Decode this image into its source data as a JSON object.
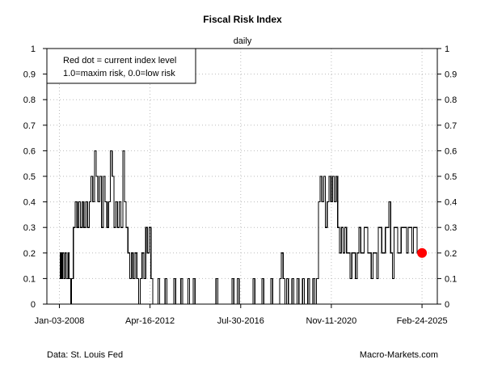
{
  "chart_data": {
    "type": "line",
    "title": "Fiscal Risk Index",
    "subtitle": "daily",
    "ylim": [
      0,
      1
    ],
    "y_ticks": [
      0,
      0.1,
      0.2,
      0.3,
      0.4,
      0.5,
      0.6,
      0.7,
      0.8,
      0.9,
      1
    ],
    "y_tick_labels": [
      "0",
      "0.1",
      "0.2",
      "0.3",
      "0.4",
      "0.5",
      "0.6",
      "0.7",
      "0.8",
      "0.9",
      "1"
    ],
    "x_range": [
      "2007-06-01",
      "2025-11-15"
    ],
    "x_ticks": [
      "2008-01-03",
      "2012-04-16",
      "2016-07-30",
      "2020-11-11",
      "2025-02-24"
    ],
    "x_tick_labels": [
      "Jan-03-2008",
      "Apr-16-2012",
      "Jul-30-2016",
      "Nov-11-2020",
      "Feb-24-2025"
    ],
    "grid": true,
    "legend_position": "top-left",
    "legend_lines": [
      "Red dot = current index level",
      "1.0=maxim risk, 0.0=low risk"
    ],
    "current_point": {
      "x": "2025-02-24",
      "y": 0.2
    },
    "point_color": "#ff0000",
    "line_color": "#000000",
    "grid_color": "#bbbbbb",
    "series": [
      {
        "values": [
          [
            "2008-01-03",
            0.1
          ],
          [
            "2008-01-20",
            0.2
          ],
          [
            "2008-02-10",
            0.1
          ],
          [
            "2008-03-01",
            0.2
          ],
          [
            "2008-03-20",
            0.1
          ],
          [
            "2008-04-10",
            0.2
          ],
          [
            "2008-05-01",
            0.1
          ],
          [
            "2008-06-01",
            0.2
          ],
          [
            "2008-06-20",
            0.1
          ],
          [
            "2008-07-15",
            0.0
          ],
          [
            "2008-08-01",
            0.1
          ],
          [
            "2008-09-01",
            0.3
          ],
          [
            "2008-10-01",
            0.4
          ],
          [
            "2008-11-01",
            0.3
          ],
          [
            "2008-12-01",
            0.4
          ],
          [
            "2009-01-01",
            0.3
          ],
          [
            "2009-02-01",
            0.4
          ],
          [
            "2009-03-01",
            0.3
          ],
          [
            "2009-04-01",
            0.4
          ],
          [
            "2009-05-01",
            0.3
          ],
          [
            "2009-06-01",
            0.4
          ],
          [
            "2009-07-01",
            0.5
          ],
          [
            "2009-08-01",
            0.4
          ],
          [
            "2009-09-01",
            0.6
          ],
          [
            "2009-10-01",
            0.5
          ],
          [
            "2009-11-01",
            0.4
          ],
          [
            "2009-12-01",
            0.5
          ],
          [
            "2010-01-01",
            0.3
          ],
          [
            "2010-02-01",
            0.5
          ],
          [
            "2010-03-01",
            0.4
          ],
          [
            "2010-04-01",
            0.3
          ],
          [
            "2010-05-01",
            0.4
          ],
          [
            "2010-06-01",
            0.6
          ],
          [
            "2010-07-01",
            0.5
          ],
          [
            "2010-08-01",
            0.3
          ],
          [
            "2010-09-01",
            0.4
          ],
          [
            "2010-10-01",
            0.3
          ],
          [
            "2010-11-01",
            0.4
          ],
          [
            "2010-12-01",
            0.3
          ],
          [
            "2011-01-01",
            0.6
          ],
          [
            "2011-02-01",
            0.4
          ],
          [
            "2011-03-01",
            0.3
          ],
          [
            "2011-04-01",
            0.2
          ],
          [
            "2011-05-01",
            0.1
          ],
          [
            "2011-06-01",
            0.2
          ],
          [
            "2011-07-01",
            0.1
          ],
          [
            "2011-08-01",
            0.2
          ],
          [
            "2011-09-01",
            0.1
          ],
          [
            "2011-10-01",
            0.0
          ],
          [
            "2011-11-01",
            0.1
          ],
          [
            "2011-12-01",
            0.2
          ],
          [
            "2012-01-01",
            0.1
          ],
          [
            "2012-02-01",
            0.3
          ],
          [
            "2012-03-01",
            0.2
          ],
          [
            "2012-04-01",
            0.3
          ],
          [
            "2012-05-01",
            0.1
          ],
          [
            "2012-06-01",
            0.0
          ],
          [
            "2012-09-01",
            0.1
          ],
          [
            "2012-10-01",
            0.0
          ],
          [
            "2013-01-01",
            0.1
          ],
          [
            "2013-02-01",
            0.0
          ],
          [
            "2013-06-01",
            0.1
          ],
          [
            "2013-07-01",
            0.0
          ],
          [
            "2013-10-01",
            0.1
          ],
          [
            "2013-11-01",
            0.0
          ],
          [
            "2014-02-01",
            0.1
          ],
          [
            "2014-03-01",
            0.0
          ],
          [
            "2014-05-01",
            0.1
          ],
          [
            "2014-06-01",
            0.0
          ],
          [
            "2015-06-01",
            0.1
          ],
          [
            "2015-07-01",
            0.0
          ],
          [
            "2016-03-01",
            0.1
          ],
          [
            "2016-04-01",
            0.0
          ],
          [
            "2016-06-01",
            0.1
          ],
          [
            "2016-07-01",
            0.0
          ],
          [
            "2017-03-01",
            0.1
          ],
          [
            "2017-04-01",
            0.0
          ],
          [
            "2017-08-01",
            0.1
          ],
          [
            "2017-09-01",
            0.0
          ],
          [
            "2018-01-01",
            0.1
          ],
          [
            "2018-02-01",
            0.0
          ],
          [
            "2018-06-01",
            0.1
          ],
          [
            "2018-07-01",
            0.2
          ],
          [
            "2018-08-01",
            0.1
          ],
          [
            "2018-09-01",
            0.0
          ],
          [
            "2018-10-01",
            0.1
          ],
          [
            "2018-11-01",
            0.0
          ],
          [
            "2019-01-01",
            0.1
          ],
          [
            "2019-02-01",
            0.0
          ],
          [
            "2019-04-01",
            0.1
          ],
          [
            "2019-05-01",
            0.0
          ],
          [
            "2019-07-01",
            0.1
          ],
          [
            "2019-08-01",
            0.0
          ],
          [
            "2019-10-01",
            0.1
          ],
          [
            "2019-11-01",
            0.0
          ],
          [
            "2020-01-01",
            0.1
          ],
          [
            "2020-02-01",
            0.0
          ],
          [
            "2020-03-01",
            0.1
          ],
          [
            "2020-04-01",
            0.4
          ],
          [
            "2020-05-01",
            0.5
          ],
          [
            "2020-06-01",
            0.4
          ],
          [
            "2020-07-01",
            0.5
          ],
          [
            "2020-08-01",
            0.3
          ],
          [
            "2020-09-01",
            0.4
          ],
          [
            "2020-10-01",
            0.5
          ],
          [
            "2020-11-01",
            0.4
          ],
          [
            "2020-12-01",
            0.5
          ],
          [
            "2021-01-01",
            0.4
          ],
          [
            "2021-02-01",
            0.5
          ],
          [
            "2021-03-01",
            0.3
          ],
          [
            "2021-04-01",
            0.2
          ],
          [
            "2021-05-01",
            0.3
          ],
          [
            "2021-06-01",
            0.2
          ],
          [
            "2021-07-01",
            0.3
          ],
          [
            "2021-08-01",
            0.2
          ],
          [
            "2021-10-01",
            0.1
          ],
          [
            "2021-11-01",
            0.2
          ],
          [
            "2022-01-01",
            0.1
          ],
          [
            "2022-02-01",
            0.2
          ],
          [
            "2022-03-01",
            0.3
          ],
          [
            "2022-04-01",
            0.2
          ],
          [
            "2022-06-01",
            0.3
          ],
          [
            "2022-08-01",
            0.2
          ],
          [
            "2022-10-01",
            0.1
          ],
          [
            "2022-11-01",
            0.2
          ],
          [
            "2023-01-01",
            0.1
          ],
          [
            "2023-02-01",
            0.3
          ],
          [
            "2023-04-01",
            0.2
          ],
          [
            "2023-06-01",
            0.3
          ],
          [
            "2023-08-01",
            0.4
          ],
          [
            "2023-09-01",
            0.2
          ],
          [
            "2023-10-01",
            0.1
          ],
          [
            "2023-11-01",
            0.3
          ],
          [
            "2024-01-01",
            0.2
          ],
          [
            "2024-03-01",
            0.3
          ],
          [
            "2024-06-01",
            0.2
          ],
          [
            "2024-07-01",
            0.3
          ],
          [
            "2024-09-01",
            0.2
          ],
          [
            "2024-10-01",
            0.3
          ],
          [
            "2024-12-01",
            0.2
          ],
          [
            "2025-02-24",
            0.2
          ]
        ]
      }
    ]
  },
  "footer": {
    "source": "Data: St. Louis Fed",
    "brand": "Macro-Markets.com"
  }
}
